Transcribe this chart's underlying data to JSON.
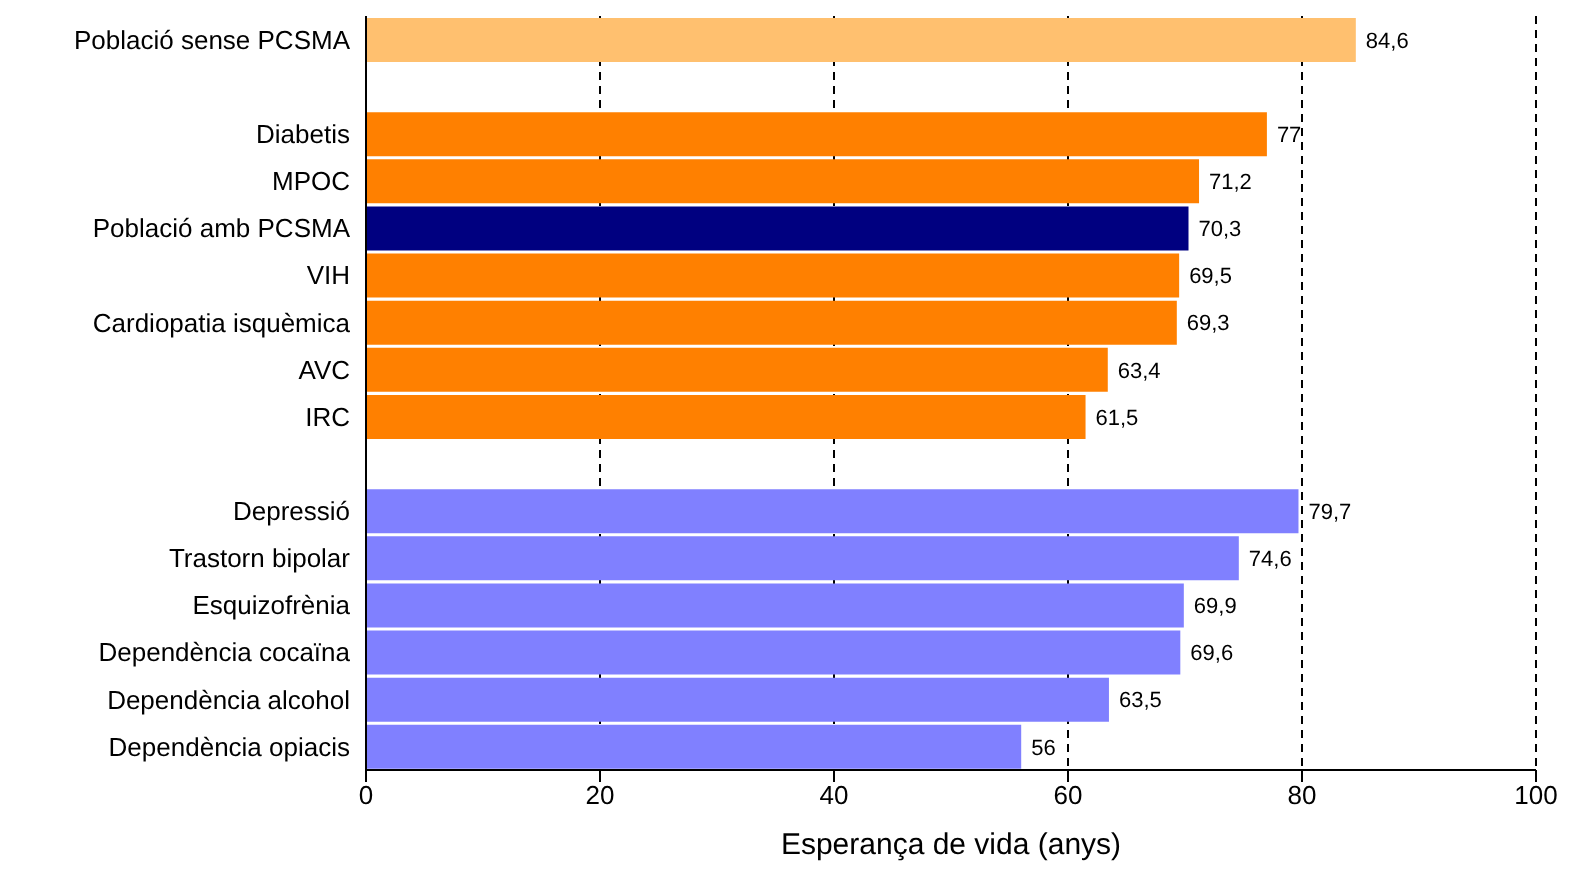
{
  "chart_data": {
    "type": "bar",
    "orientation": "horizontal",
    "xlabel": "Esperança de vida (anys)",
    "categories": [
      "Població sense PCSMA",
      null,
      "Diabetis",
      "MPOC",
      "Població amb PCSMA",
      "VIH",
      "Cardiopatia isquèmica",
      "AVC",
      "IRC",
      null,
      "Depressió",
      "Trastorn bipolar",
      "Esquizofrènia",
      "Dependència cocaïna",
      "Dependència alcohol",
      "Dependència opiacis"
    ],
    "values": [
      84.6,
      null,
      77,
      71.2,
      70.3,
      69.5,
      69.3,
      63.4,
      61.5,
      null,
      79.7,
      74.6,
      69.9,
      69.6,
      63.5,
      56
    ],
    "value_labels": [
      "84,6",
      null,
      "77",
      "71,2",
      "70,3",
      "69,5",
      "69,3",
      "63,4",
      "61,5",
      null,
      "79,7",
      "74,6",
      "69,9",
      "69,6",
      "63,5",
      "56"
    ],
    "colors": [
      "#ffc06f",
      null,
      "#ff8000",
      "#ff8000",
      "#000080",
      "#ff8000",
      "#ff8000",
      "#ff8000",
      "#ff8000",
      null,
      "#8080ff",
      "#8080ff",
      "#8080ff",
      "#8080ff",
      "#8080ff",
      "#8080ff"
    ],
    "xlim": [
      0,
      100
    ],
    "xticks": [
      0,
      20,
      40,
      60,
      80,
      100
    ],
    "grid": "x"
  }
}
